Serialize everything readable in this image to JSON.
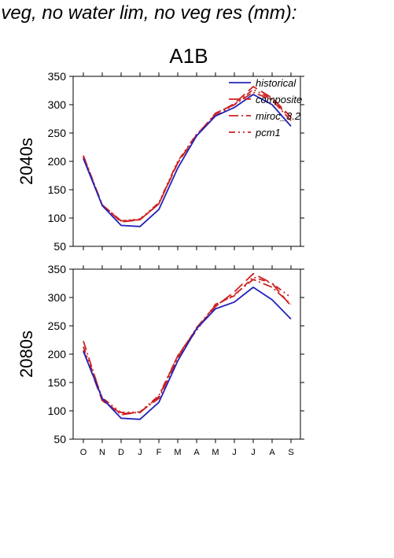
{
  "title": "f veg, no water lim, no veg res (mm):",
  "scenario": "A1B",
  "chart_data": {
    "type": "line",
    "shared_x": [
      "O",
      "N",
      "D",
      "J",
      "F",
      "M",
      "A",
      "M",
      "J",
      "J",
      "A",
      "S"
    ],
    "ylim": [
      50,
      350
    ],
    "yticks": [
      50,
      100,
      150,
      200,
      250,
      300,
      350
    ],
    "legend": {
      "placement": "top-right",
      "entries": [
        "historical",
        "composite",
        "miroc_3.2",
        "pcm1"
      ]
    },
    "colors": {
      "historical": "#2222bb",
      "composite": "#cc2222",
      "miroc_3.2": "#cc2222",
      "pcm1": "#cc2222"
    },
    "panels": [
      {
        "row_label": "2040s",
        "series": [
          {
            "name": "historical",
            "values": [
              205,
              122,
              87,
              85,
              115,
              188,
              245,
              280,
              295,
              318,
              300,
              262
            ]
          },
          {
            "name": "composite",
            "values": [
              207,
              123,
              93,
              97,
              125,
              197,
              247,
              283,
              302,
              332,
              312,
              278
            ]
          },
          {
            "name": "miroc_3.2",
            "values": [
              210,
              123,
              95,
              97,
              125,
              198,
              245,
              285,
              300,
              322,
              308,
              272
            ]
          },
          {
            "name": "pcm1",
            "values": [
              210,
              123,
              95,
              98,
              127,
              200,
              248,
              280,
              300,
              327,
              310,
              275
            ]
          }
        ]
      },
      {
        "row_label": "2080s",
        "series": [
          {
            "name": "historical",
            "values": [
              205,
              122,
              87,
              85,
              115,
              188,
              245,
              280,
              292,
              318,
              296,
              262
            ]
          },
          {
            "name": "composite",
            "values": [
              207,
              118,
              95,
              97,
              125,
              197,
              245,
              284,
              310,
              342,
              325,
              285
            ]
          },
          {
            "name": "miroc_3.2",
            "values": [
              223,
              120,
              93,
              98,
              122,
              193,
              247,
              286,
              305,
              332,
              318,
              288
            ]
          },
          {
            "name": "pcm1",
            "values": [
              213,
              123,
              97,
              98,
              127,
              197,
              242,
              288,
              303,
              336,
              325,
              300
            ]
          }
        ]
      }
    ]
  }
}
